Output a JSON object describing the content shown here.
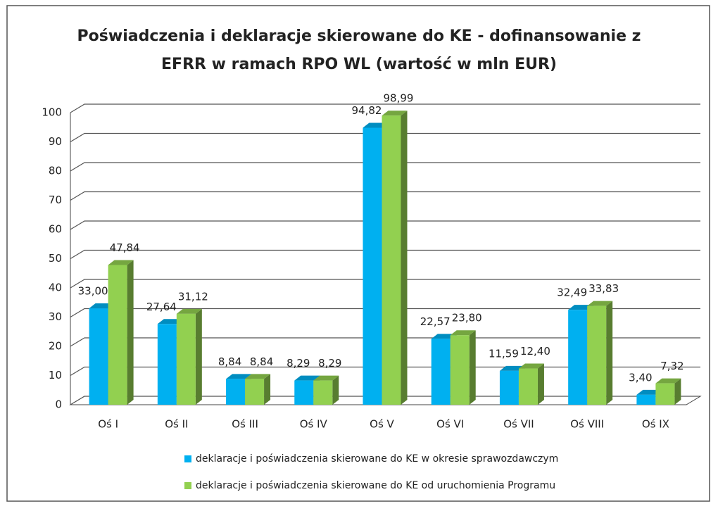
{
  "chart_data": {
    "type": "bar3d",
    "title": [
      "Poświadczenia i deklaracje skierowane do KE - dofinansowanie z",
      "EFRR w ramach RPO WL (wartość w mln EUR)"
    ],
    "categories": [
      "Oś I",
      "Oś II",
      "Oś III",
      "Oś IV",
      "Oś V",
      "Oś VI",
      "Oś VII",
      "Oś VIII",
      "Oś IX"
    ],
    "series": [
      {
        "name": "deklaracje i poświadczenia skierowane do KE w okresie sprawozdawczym",
        "color": "#00b0f0",
        "values": [
          33.0,
          27.64,
          8.84,
          8.29,
          94.82,
          22.57,
          11.59,
          32.49,
          3.4
        ],
        "value_labels": [
          "33,00",
          "27,64",
          "8,84",
          "8,29",
          "94,82",
          "22,57",
          "11,59",
          "32,49",
          "3,40"
        ]
      },
      {
        "name": "deklaracje i poświadczenia skierowane do KE od uruchomienia Programu",
        "color": "#92d050",
        "values": [
          47.84,
          31.12,
          8.84,
          8.29,
          98.99,
          23.8,
          12.4,
          33.83,
          7.32
        ],
        "value_labels": [
          "47,84",
          "31,12",
          "8,84",
          "8,29",
          "98,99",
          "23,80",
          "12,40",
          "33,83",
          "7,32"
        ]
      }
    ],
    "ylim": [
      0,
      100
    ],
    "yticks": [
      0,
      10,
      20,
      30,
      40,
      50,
      60,
      70,
      80,
      90,
      100
    ],
    "grid": true
  }
}
